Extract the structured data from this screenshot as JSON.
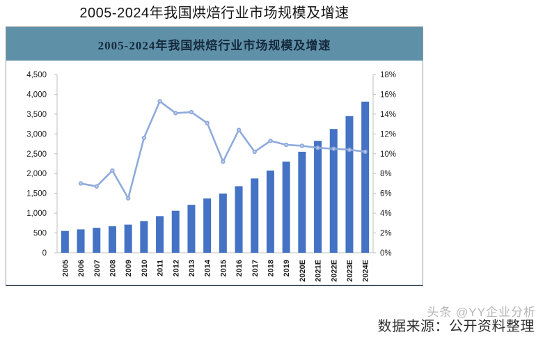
{
  "page": {
    "top_title": "2005-2024年我国烘焙行业市场规模及增速",
    "source_text": "数据来源：公开资料整理",
    "watermark": "头条 @YY企业分析"
  },
  "panel": {
    "header_title": "2005-2024年我国烘焙行业市场规模及增速",
    "header_bg": "#5E90A8",
    "header_text_color": "#16293C"
  },
  "chart_data": {
    "type": "combo",
    "title": "2005-2024年我国烘焙行业市场规模及增速",
    "grid": false,
    "legend": false,
    "categories": [
      "2005",
      "2006",
      "2007",
      "2008",
      "2009",
      "2010",
      "2011",
      "2012",
      "2013",
      "2014",
      "2015",
      "2016",
      "2017",
      "2018",
      "2019",
      "2020E",
      "2021E",
      "2022E",
      "2023E",
      "2024E"
    ],
    "series": [
      {
        "name": "市场规模",
        "type": "bar",
        "axis": "left",
        "color": "#4472C4",
        "values": [
          550,
          590,
          630,
          670,
          710,
          800,
          925,
          1060,
          1210,
          1370,
          1495,
          1680,
          1875,
          2075,
          2300,
          2550,
          2825,
          3125,
          3450,
          3815
        ]
      },
      {
        "name": "增速",
        "type": "line",
        "axis": "right",
        "color": "#8FAADC",
        "marker_inner_color": "#C3D1ED",
        "values": [
          null,
          7.0,
          6.7,
          8.3,
          5.5,
          11.6,
          15.3,
          14.1,
          14.2,
          13.1,
          9.2,
          12.4,
          10.2,
          11.3,
          10.9,
          10.8,
          10.6,
          10.5,
          10.4,
          10.2
        ]
      }
    ],
    "left_axis": {
      "min": 0,
      "max": 4500,
      "ticks": [
        "0",
        "500",
        "1,000",
        "1,500",
        "2,000",
        "2,500",
        "3,000",
        "3,500",
        "4,000",
        "4,500"
      ]
    },
    "right_axis": {
      "min": 0,
      "max": 18,
      "ticks": [
        "0%",
        "2%",
        "4%",
        "6%",
        "8%",
        "10%",
        "12%",
        "14%",
        "16%",
        "18%"
      ]
    },
    "axis_line_color": "#BFBFBF"
  }
}
